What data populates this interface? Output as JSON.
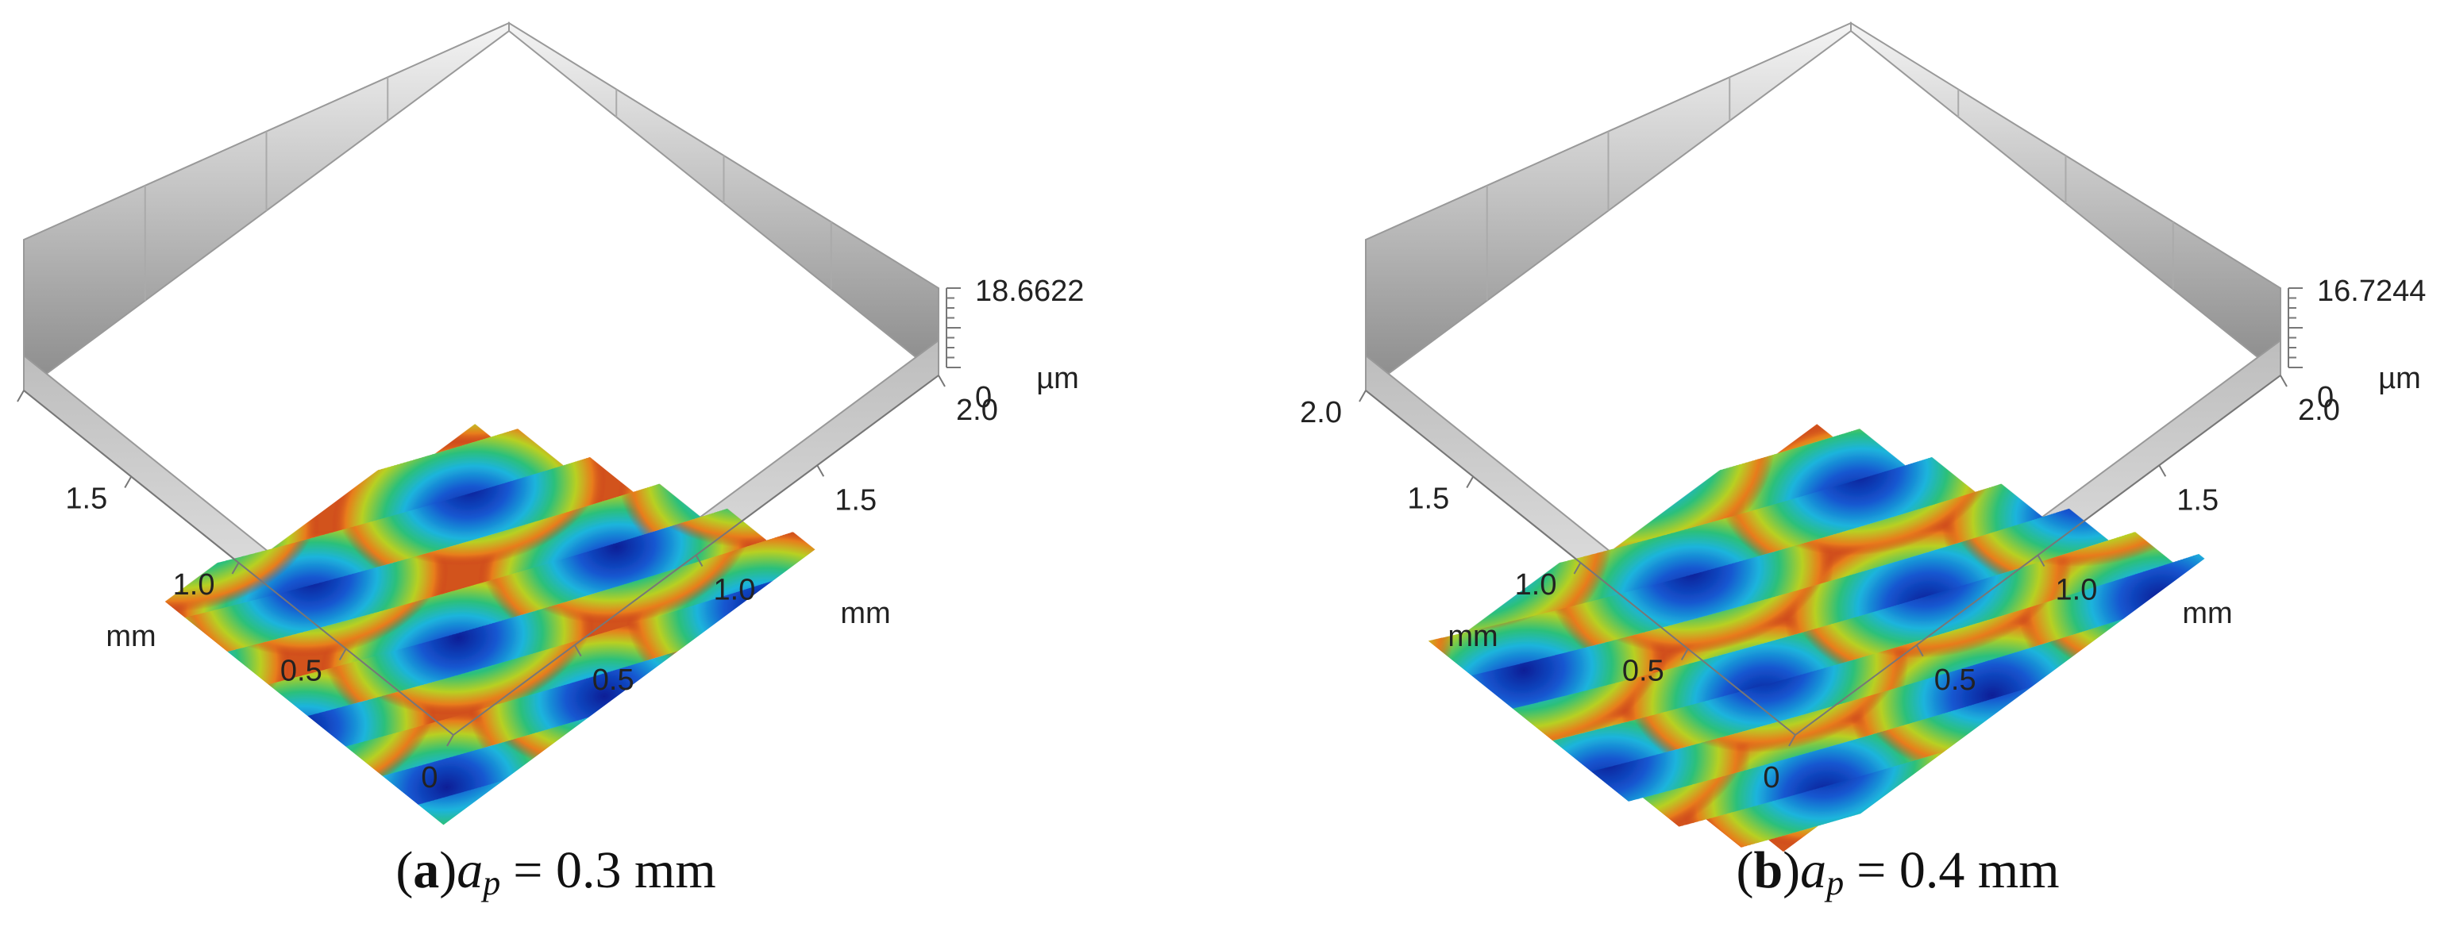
{
  "panels": [
    {
      "x_axis": {
        "ticks": [
          "0.5",
          "1.0",
          "1.5",
          "2.0"
        ],
        "unit": "mm"
      },
      "y_axis": {
        "ticks": [
          "0",
          "0.5",
          "1.0",
          "1.5",
          "2.0"
        ],
        "unit": "mm"
      },
      "z_axis": {
        "ticks": [
          "0",
          "18.6622"
        ],
        "unit": "µm"
      },
      "caption": {
        "parts": [
          "(",
          "a",
          ")",
          "a",
          "p",
          "= 0.3 mm"
        ]
      }
    },
    {
      "x_axis": {
        "ticks": [
          "0.5",
          "1.0",
          "1.5",
          "2.0"
        ],
        "unit": "mm"
      },
      "y_axis": {
        "ticks": [
          "0",
          "0.5",
          "1.0",
          "1.5",
          "2.0"
        ],
        "unit": "mm"
      },
      "z_axis": {
        "ticks": [
          "0",
          "16.7244"
        ],
        "unit": "µm"
      },
      "caption": {
        "parts": [
          "(",
          "b",
          ")",
          "a",
          "p",
          "= 0.4 mm"
        ]
      }
    }
  ]
}
